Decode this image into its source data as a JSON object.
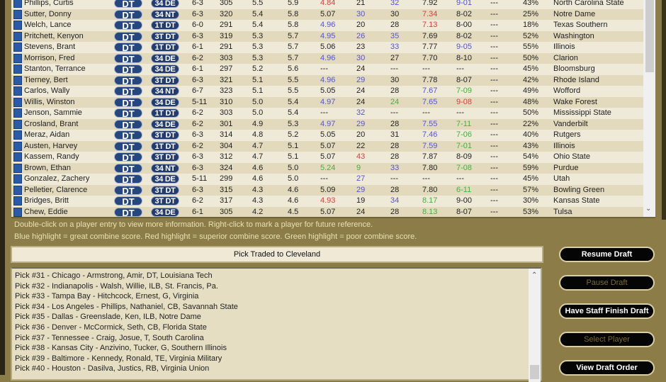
{
  "players": [
    {
      "name": "Phillips, Curtis",
      "pos": "DT",
      "scheme": "34 DE",
      "c": [
        "6-3",
        "305",
        "5.5",
        "5.9",
        "4.84",
        "21",
        "32",
        "7.92",
        "9-01",
        "---",
        "43%",
        "North Carolina State"
      ],
      "hl": [
        "",
        "",
        "",
        "",
        "r",
        "",
        "b",
        "",
        "b",
        "",
        "",
        ""
      ]
    },
    {
      "name": "Sutter, Donny",
      "pos": "DT",
      "scheme": "34 NT",
      "c": [
        "6-3",
        "320",
        "5.4",
        "5.8",
        "5.07",
        "30",
        "30",
        "7.34",
        "8-02",
        "---",
        "25%",
        "Notre Dame"
      ],
      "hl": [
        "",
        "",
        "",
        "",
        "",
        "b",
        "",
        "r",
        "",
        "",
        "",
        ""
      ]
    },
    {
      "name": "Welch, Lance",
      "pos": "DT",
      "scheme": "1T DT",
      "c": [
        "6-0",
        "291",
        "5.4",
        "5.8",
        "4.96",
        "20",
        "28",
        "7.13",
        "8-00",
        "---",
        "18%",
        "Texas Southern"
      ],
      "hl": [
        "",
        "",
        "",
        "",
        "b",
        "",
        "",
        "r",
        "",
        "",
        "",
        ""
      ]
    },
    {
      "name": "Pritchett, Kenyon",
      "pos": "DT",
      "scheme": "3T DT",
      "c": [
        "6-3",
        "319",
        "5.3",
        "5.7",
        "4.95",
        "26",
        "35",
        "7.69",
        "8-02",
        "---",
        "52%",
        "Washington"
      ],
      "hl": [
        "",
        "",
        "",
        "",
        "b",
        "b",
        "b",
        "",
        "",
        "",
        "",
        ""
      ]
    },
    {
      "name": "Stevens, Brant",
      "pos": "DT",
      "scheme": "1T DT",
      "c": [
        "6-1",
        "291",
        "5.3",
        "5.7",
        "5.06",
        "23",
        "33",
        "7.77",
        "9-05",
        "---",
        "55%",
        "Illinois"
      ],
      "hl": [
        "",
        "",
        "",
        "",
        "",
        "",
        "b",
        "",
        "b",
        "",
        "",
        ""
      ]
    },
    {
      "name": "Morrison, Fred",
      "pos": "DT",
      "scheme": "34 DE",
      "c": [
        "6-2",
        "303",
        "5.3",
        "5.7",
        "4.96",
        "30",
        "27",
        "7.70",
        "8-10",
        "---",
        "50%",
        "Clarion"
      ],
      "hl": [
        "",
        "",
        "",
        "",
        "b",
        "b",
        "",
        "",
        "",
        "",
        "",
        ""
      ]
    },
    {
      "name": "Stanton, Terrance",
      "pos": "DT",
      "scheme": "34 DE",
      "c": [
        "6-1",
        "297",
        "5.2",
        "5.6",
        "---",
        "24",
        "---",
        "---",
        "---",
        "---",
        "45%",
        "Bloomsburg"
      ],
      "hl": [
        "",
        "",
        "",
        "",
        "",
        "",
        "",
        "",
        "",
        "",
        "",
        ""
      ]
    },
    {
      "name": "Tierney, Bert",
      "pos": "DT",
      "scheme": "3T DT",
      "c": [
        "6-3",
        "321",
        "5.1",
        "5.5",
        "4.96",
        "29",
        "30",
        "7.78",
        "8-07",
        "---",
        "42%",
        "Rhode Island"
      ],
      "hl": [
        "",
        "",
        "",
        "",
        "b",
        "b",
        "",
        "",
        "",
        "",
        "",
        ""
      ]
    },
    {
      "name": "Carlos, Wally",
      "pos": "DT",
      "scheme": "34 NT",
      "c": [
        "6-7",
        "323",
        "5.1",
        "5.5",
        "5.05",
        "24",
        "28",
        "7.67",
        "7-09",
        "---",
        "49%",
        "Wofford"
      ],
      "hl": [
        "",
        "",
        "",
        "",
        "",
        "",
        "",
        "b",
        "g",
        "",
        "",
        ""
      ]
    },
    {
      "name": "Willis, Winston",
      "pos": "DT",
      "scheme": "34 DE",
      "c": [
        "5-11",
        "310",
        "5.0",
        "5.4",
        "4.97",
        "24",
        "24",
        "7.65",
        "9-08",
        "---",
        "48%",
        "Wake Forest"
      ],
      "hl": [
        "",
        "",
        "",
        "",
        "b",
        "",
        "g",
        "b",
        "r",
        "",
        "",
        ""
      ]
    },
    {
      "name": "Jenson, Sammie",
      "pos": "DT",
      "scheme": "1T DT",
      "c": [
        "6-2",
        "303",
        "5.0",
        "5.4",
        "---",
        "32",
        "---",
        "---",
        "---",
        "---",
        "50%",
        "Mississippi State"
      ],
      "hl": [
        "",
        "",
        "",
        "",
        "",
        "b",
        "",
        "",
        "",
        "",
        "",
        ""
      ]
    },
    {
      "name": "Crosland, Brant",
      "pos": "DT",
      "scheme": "34 DE",
      "c": [
        "6-2",
        "301",
        "4.9",
        "5.3",
        "4.97",
        "29",
        "28",
        "7.55",
        "7-11",
        "---",
        "22%",
        "Vanderbilt"
      ],
      "hl": [
        "",
        "",
        "",
        "",
        "b",
        "b",
        "",
        "b",
        "g",
        "",
        "",
        ""
      ]
    },
    {
      "name": "Meraz, Aidan",
      "pos": "DT",
      "scheme": "3T DT",
      "c": [
        "6-3",
        "314",
        "4.8",
        "5.2",
        "5.05",
        "20",
        "31",
        "7.46",
        "7-06",
        "---",
        "40%",
        "Rutgers"
      ],
      "hl": [
        "",
        "",
        "",
        "",
        "",
        "",
        "",
        "b",
        "g",
        "",
        "",
        ""
      ]
    },
    {
      "name": "Austen, Harvey",
      "pos": "DT",
      "scheme": "1T DT",
      "c": [
        "6-2",
        "304",
        "4.7",
        "5.1",
        "5.07",
        "22",
        "28",
        "7.59",
        "7-01",
        "---",
        "43%",
        "Illinois"
      ],
      "hl": [
        "",
        "",
        "",
        "",
        "",
        "",
        "",
        "b",
        "g",
        "",
        "",
        ""
      ]
    },
    {
      "name": "Kassem, Randy",
      "pos": "DT",
      "scheme": "3T DT",
      "c": [
        "6-3",
        "312",
        "4.7",
        "5.1",
        "5.07",
        "43",
        "28",
        "7.87",
        "8-09",
        "---",
        "54%",
        "Ohio State"
      ],
      "hl": [
        "",
        "",
        "",
        "",
        "",
        "r",
        "",
        "",
        "",
        "",
        "",
        ""
      ]
    },
    {
      "name": "Brown, Ethan",
      "pos": "DT",
      "scheme": "34 NT",
      "c": [
        "6-3",
        "324",
        "4.6",
        "5.0",
        "5.24",
        "9",
        "33",
        "7.80",
        "7-08",
        "---",
        "59%",
        "Purdue"
      ],
      "hl": [
        "",
        "",
        "",
        "",
        "g",
        "g",
        "b",
        "",
        "g",
        "",
        "",
        ""
      ]
    },
    {
      "name": "Gonzalez, Zachery",
      "pos": "DT",
      "scheme": "34 DE",
      "c": [
        "5-11",
        "299",
        "4.6",
        "5.0",
        "---",
        "27",
        "---",
        "---",
        "---",
        "---",
        "45%",
        "Utah"
      ],
      "hl": [
        "",
        "",
        "",
        "",
        "",
        "b",
        "",
        "",
        "",
        "",
        "",
        ""
      ]
    },
    {
      "name": "Pelletier, Clarence",
      "pos": "DT",
      "scheme": "3T DT",
      "c": [
        "6-3",
        "315",
        "4.3",
        "4.6",
        "5.09",
        "29",
        "28",
        "7.80",
        "6-11",
        "---",
        "57%",
        "Bowling Green"
      ],
      "hl": [
        "",
        "",
        "",
        "",
        "",
        "b",
        "",
        "",
        "g",
        "",
        "",
        ""
      ]
    },
    {
      "name": "Bridges, Britt",
      "pos": "DT",
      "scheme": "3T DT",
      "c": [
        "6-2",
        "317",
        "4.3",
        "4.6",
        "4.93",
        "19",
        "34",
        "8.17",
        "9-00",
        "---",
        "30%",
        "Kansas State"
      ],
      "hl": [
        "",
        "",
        "",
        "",
        "r",
        "",
        "b",
        "g",
        "",
        "",
        "",
        ""
      ]
    },
    {
      "name": "Chew, Eddie",
      "pos": "DT",
      "scheme": "34 DE",
      "c": [
        "6-1",
        "305",
        "4.2",
        "4.5",
        "5.07",
        "24",
        "28",
        "8.13",
        "8-07",
        "---",
        "53%",
        "Tulsa"
      ],
      "hl": [
        "",
        "",
        "",
        "",
        "",
        "",
        "",
        "g",
        "",
        "",
        "",
        ""
      ]
    }
  ],
  "notes": {
    "line1": "Double-click on a player entry to view more information. Right-click to mark a player for future reference.",
    "line2": "Blue highlight = great combine score. Red highlight = superior combine score. Green highlight = poor combine score."
  },
  "status": "Pick Traded to Cleveland",
  "picks": [
    "Pick #31 - Chicago - Armstrong, Amir, DT, Louisiana Tech",
    "Pick #32 - Indianapolis - Walsh, Willie, ILB, St. Francis, Pa.",
    "Pick #33 - Tampa Bay - Hitchcock, Ernest, G, Virginia",
    "Pick #34 - Los Angeles - Phillips, Nathaniel, CB, Savannah State",
    "Pick #35 - Dallas - Greenslade, Ken, ILB, Notre Dame",
    "Pick #36 - Denver - McCormick, Seth, CB, Florida State",
    "Pick #37 - Tennessee - Craig, Josue, T, South Carolina",
    "Pick #38 - Kansas City - Anzivino, Tucker, G, Southern Illinois",
    "Pick #39 - Baltimore - Kennedy, Ronald, TE, Virginia Military",
    "Pick #40 - Houston - Dasilva, Justics, RB, Virginia Union"
  ],
  "buttons": {
    "resume": "Resume Draft",
    "pause": "Pause Draft",
    "finish": "Have Staff Finish Draft",
    "select": "Select Player",
    "order": "View Draft Order"
  },
  "colors": {
    "frame": "#8c7c48",
    "great": "#5555cc",
    "superior": "#d04040",
    "poor": "#44b040",
    "badge": "#26467e"
  }
}
